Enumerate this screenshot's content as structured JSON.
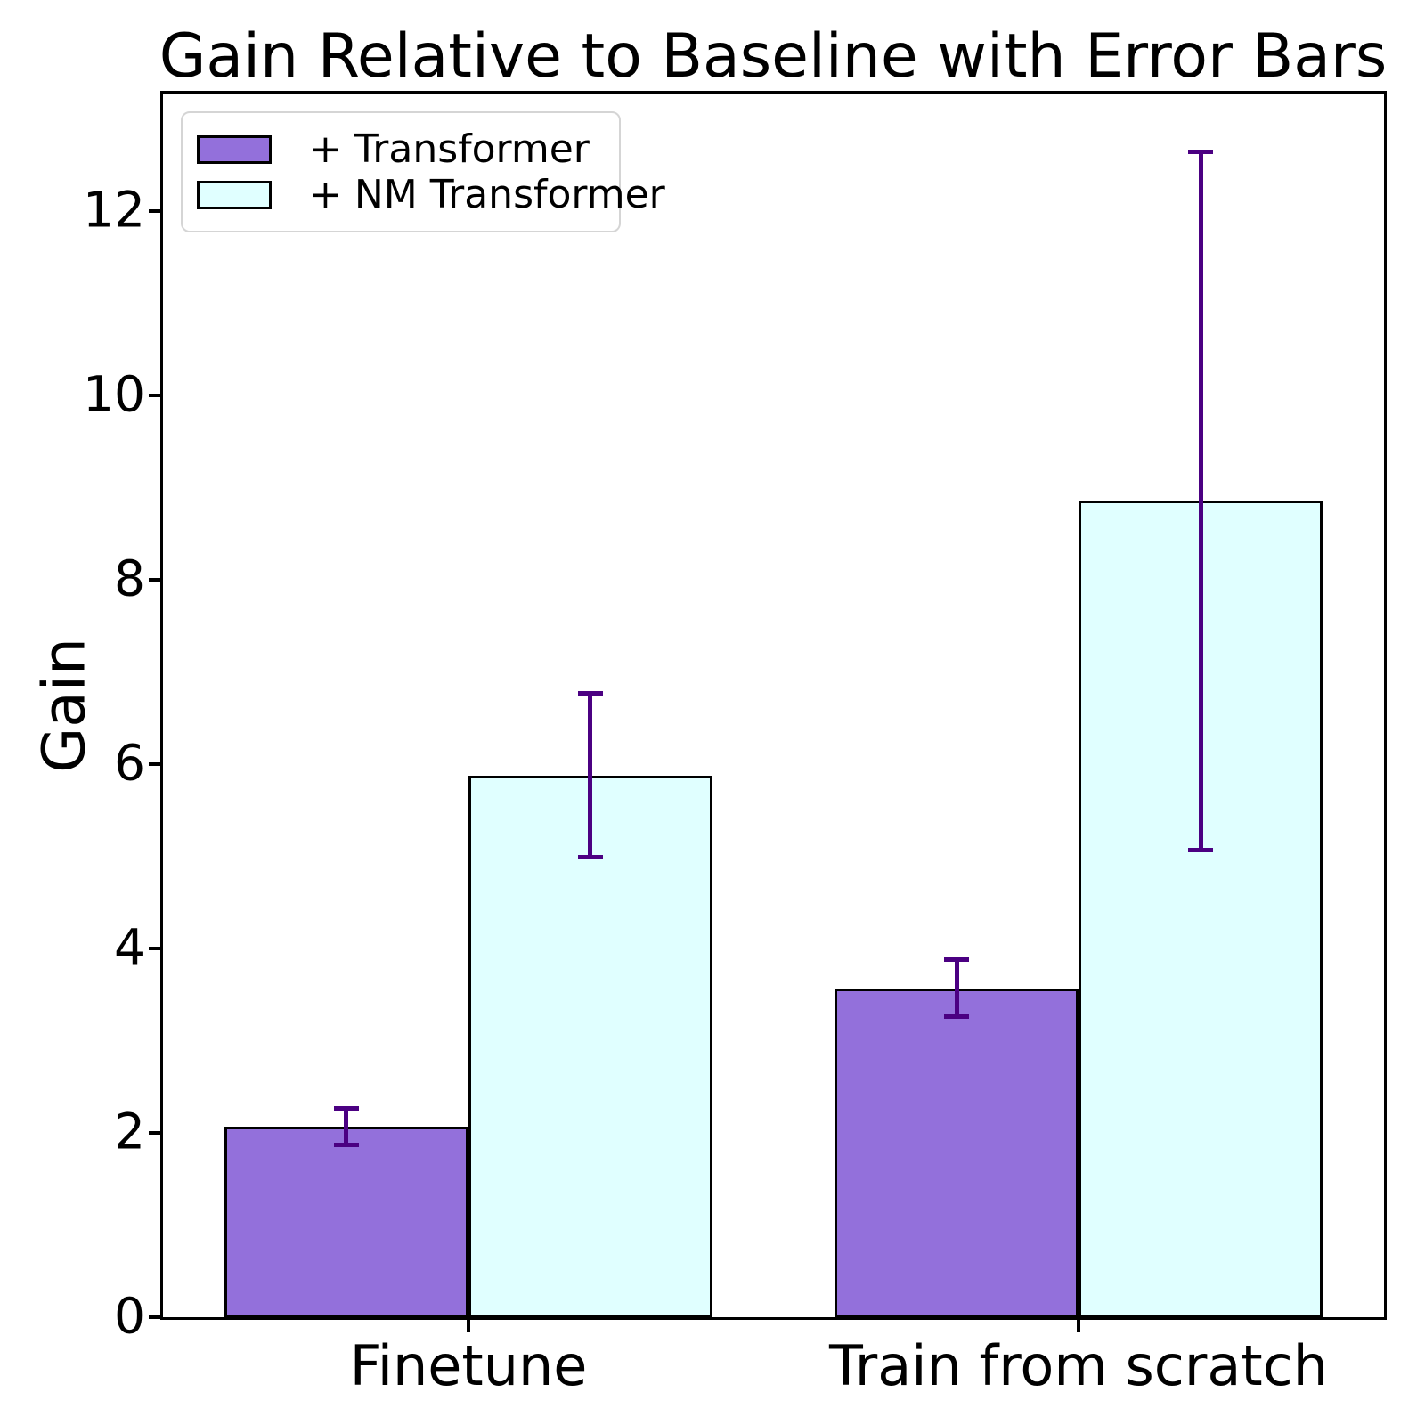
{
  "chart_data": {
    "type": "bar",
    "title": "Gain Relative to Baseline with Error Bars",
    "ylabel": "Gain",
    "xlabel": "",
    "categories": [
      "Finetune",
      "Train from scratch"
    ],
    "series": [
      {
        "name": "+ Transformer",
        "color": "#9370DB",
        "values": [
          2.07,
          3.57
        ],
        "errors": [
          0.2,
          0.31
        ]
      },
      {
        "name": "+ NM Transformer",
        "color": "#E0FFFF",
        "values": [
          5.88,
          8.86
        ],
        "errors": [
          0.89,
          3.79
        ]
      }
    ],
    "yticks": [
      0,
      2,
      4,
      6,
      8,
      10,
      12
    ],
    "ylim": [
      0,
      13.28
    ],
    "bar_edge_color": "#000000",
    "error_bar_color": "#4B0082",
    "legend_position": "upper left",
    "grid": false,
    "background_color": "#FFFFFF"
  }
}
